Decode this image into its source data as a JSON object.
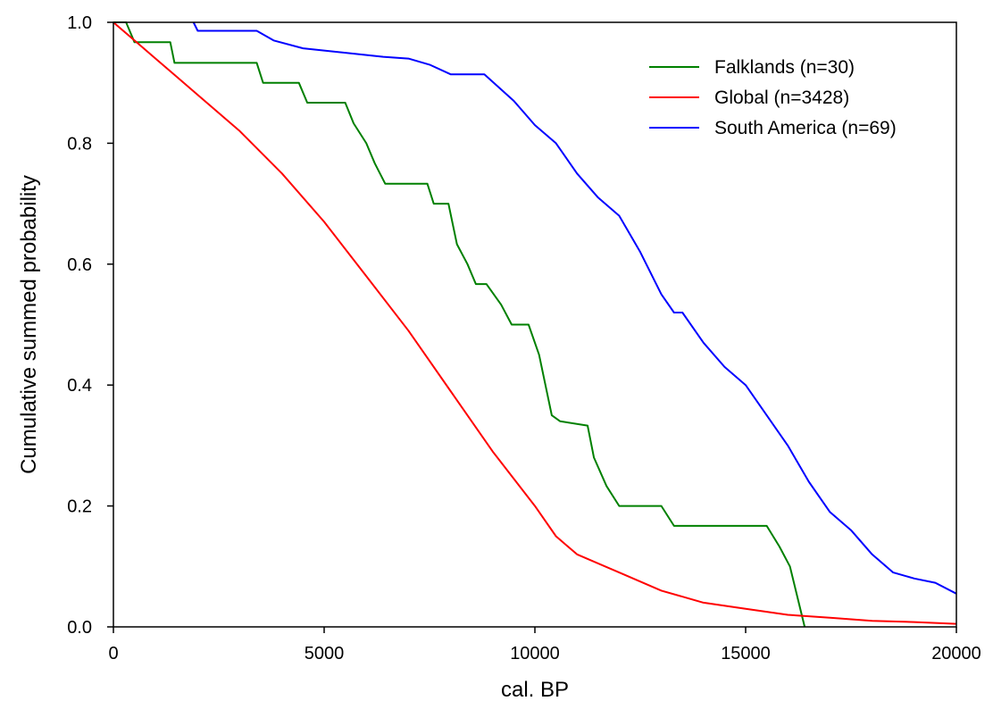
{
  "chart_data": {
    "type": "line",
    "title": "",
    "xlabel": "cal. BP",
    "ylabel": "Cumulative summed probability",
    "xlim": [
      0,
      20000
    ],
    "ylim": [
      0,
      1.0
    ],
    "x_ticks": [
      0,
      5000,
      10000,
      15000,
      20000
    ],
    "x_tick_labels": [
      "0",
      "5000",
      "10000",
      "15000",
      "20000"
    ],
    "y_ticks": [
      0,
      0.2,
      0.4,
      0.6,
      0.8,
      1.0
    ],
    "y_tick_labels": [
      "0.0",
      "0.2",
      "0.4",
      "0.6",
      "0.8",
      "1.0"
    ],
    "grid": false,
    "legend_position": "top-right",
    "series": [
      {
        "name": "Falklands (n=30)",
        "color": "#008000",
        "points": [
          [
            0,
            1.0
          ],
          [
            300,
            1.0
          ],
          [
            500,
            0.967
          ],
          [
            1350,
            0.967
          ],
          [
            1450,
            0.933
          ],
          [
            3400,
            0.933
          ],
          [
            3550,
            0.9
          ],
          [
            4400,
            0.9
          ],
          [
            4600,
            0.867
          ],
          [
            5500,
            0.867
          ],
          [
            5700,
            0.833
          ],
          [
            6000,
            0.8
          ],
          [
            6200,
            0.767
          ],
          [
            6450,
            0.733
          ],
          [
            7450,
            0.733
          ],
          [
            7600,
            0.7
          ],
          [
            7950,
            0.7
          ],
          [
            8150,
            0.633
          ],
          [
            8400,
            0.6
          ],
          [
            8600,
            0.567
          ],
          [
            8850,
            0.567
          ],
          [
            9200,
            0.533
          ],
          [
            9450,
            0.5
          ],
          [
            9850,
            0.5
          ],
          [
            10100,
            0.45
          ],
          [
            10400,
            0.35
          ],
          [
            10600,
            0.34
          ],
          [
            11250,
            0.333
          ],
          [
            11400,
            0.28
          ],
          [
            11700,
            0.233
          ],
          [
            12000,
            0.2
          ],
          [
            13000,
            0.2
          ],
          [
            13300,
            0.167
          ],
          [
            15500,
            0.167
          ],
          [
            15800,
            0.133
          ],
          [
            16050,
            0.1
          ],
          [
            16400,
            0.0
          ]
        ]
      },
      {
        "name": "Global (n=3428)",
        "color": "#ff0000",
        "points": [
          [
            0,
            1.0
          ],
          [
            500,
            0.97
          ],
          [
            1000,
            0.94
          ],
          [
            1500,
            0.91
          ],
          [
            2000,
            0.88
          ],
          [
            3000,
            0.82
          ],
          [
            4000,
            0.75
          ],
          [
            5000,
            0.67
          ],
          [
            6000,
            0.58
          ],
          [
            7000,
            0.49
          ],
          [
            8000,
            0.39
          ],
          [
            9000,
            0.29
          ],
          [
            10000,
            0.2
          ],
          [
            10500,
            0.15
          ],
          [
            11000,
            0.12
          ],
          [
            12000,
            0.09
          ],
          [
            13000,
            0.06
          ],
          [
            14000,
            0.04
          ],
          [
            15000,
            0.03
          ],
          [
            16000,
            0.02
          ],
          [
            17000,
            0.015
          ],
          [
            18000,
            0.01
          ],
          [
            19000,
            0.008
          ],
          [
            20000,
            0.005
          ]
        ]
      },
      {
        "name": "South America (n=69)",
        "color": "#0000ff",
        "points": [
          [
            1900,
            1.0
          ],
          [
            2000,
            0.986
          ],
          [
            3400,
            0.986
          ],
          [
            3800,
            0.97
          ],
          [
            4500,
            0.957
          ],
          [
            6400,
            0.943
          ],
          [
            7000,
            0.94
          ],
          [
            7500,
            0.93
          ],
          [
            8000,
            0.914
          ],
          [
            8800,
            0.914
          ],
          [
            9500,
            0.87
          ],
          [
            10000,
            0.83
          ],
          [
            10500,
            0.8
          ],
          [
            11000,
            0.75
          ],
          [
            11500,
            0.71
          ],
          [
            12000,
            0.68
          ],
          [
            12500,
            0.62
          ],
          [
            13000,
            0.55
          ],
          [
            13300,
            0.52
          ],
          [
            13500,
            0.52
          ],
          [
            14000,
            0.47
          ],
          [
            14500,
            0.43
          ],
          [
            15000,
            0.4
          ],
          [
            15500,
            0.35
          ],
          [
            16000,
            0.3
          ],
          [
            16500,
            0.24
          ],
          [
            17000,
            0.19
          ],
          [
            17500,
            0.16
          ],
          [
            18000,
            0.12
          ],
          [
            18500,
            0.09
          ],
          [
            19000,
            0.08
          ],
          [
            19500,
            0.073
          ],
          [
            20000,
            0.055
          ]
        ]
      }
    ]
  }
}
